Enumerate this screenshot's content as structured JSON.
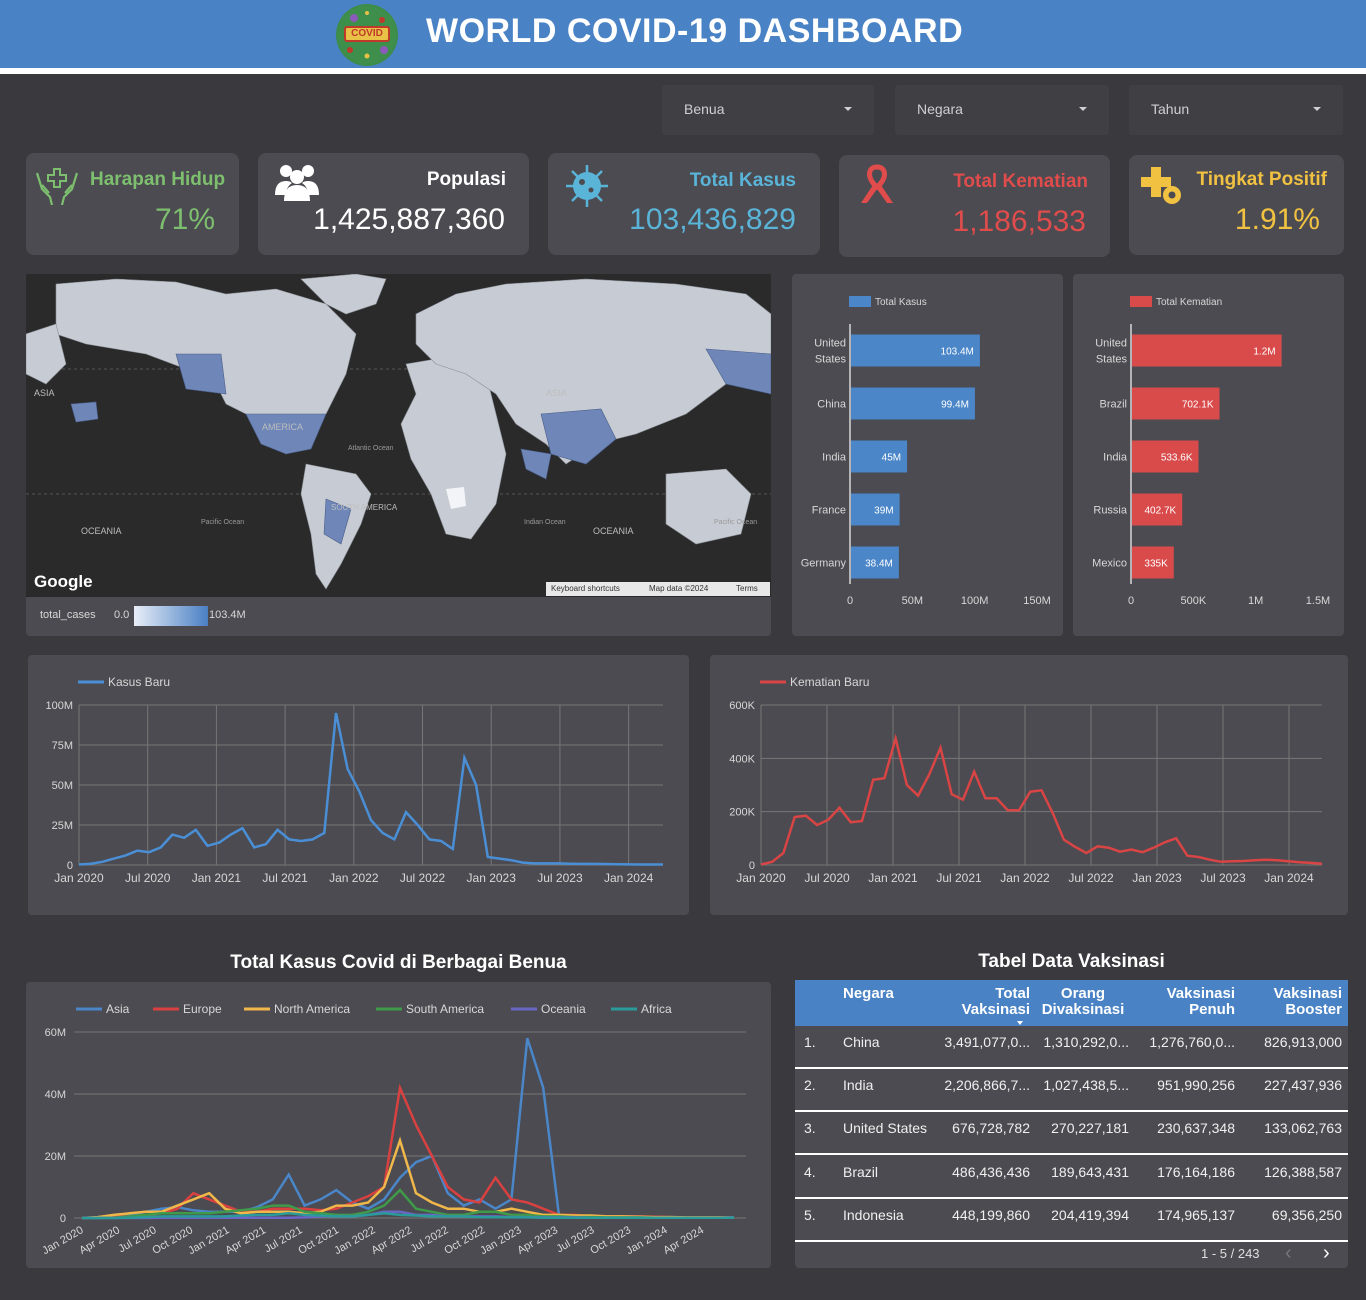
{
  "header": {
    "title": "WORLD COVID-19 DASHBOARD",
    "logo_text": "COVID"
  },
  "filters": [
    {
      "label": "Benua"
    },
    {
      "label": "Negara"
    },
    {
      "label": "Tahun"
    }
  ],
  "kpis": [
    {
      "label": "Harapan Hidup",
      "value": "71%",
      "color": "#7dbf6e",
      "icon": "hands-care-icon"
    },
    {
      "label": "Populasi",
      "value": "1,425,887,360",
      "color": "#ffffff",
      "icon": "people-icon"
    },
    {
      "label": "Total Kasus",
      "value": "103,436,829",
      "color": "#5ab4d8",
      "icon": "virus-icon"
    },
    {
      "label": "Total Kematian",
      "value": "1,186,533",
      "color": "#e04c4c",
      "icon": "ribbon-icon"
    },
    {
      "label": "Tingkat Positif",
      "value": "1.91%",
      "color": "#f1c141",
      "icon": "plus-gear-icon"
    }
  ],
  "map": {
    "google": "Google",
    "attribution": [
      "Keyboard shortcuts",
      "Map data ©2024",
      "Terms"
    ],
    "legend_label": "total_cases",
    "legend_min": "0.0",
    "legend_max": "103.4M",
    "labels": [
      "ASIA",
      "AMERICA",
      "Atlantic Ocean",
      "SOUTH AMERICA",
      "OCEANIA",
      "Pacific Ocean",
      "Indian Ocean",
      "ASIA",
      "OCEANIA",
      "Pacific Ocean"
    ]
  },
  "charts": {
    "cases_bar": {
      "legend": "Total Kasus",
      "color": "#4a86c8",
      "max": 150,
      "ticks": [
        "0",
        "50M",
        "100M",
        "150M"
      ],
      "bars": [
        {
          "label": [
            "United",
            "States"
          ],
          "value": 103.4,
          "text": "103.4M"
        },
        {
          "label": [
            "China"
          ],
          "value": 99.4,
          "text": "99.4M"
        },
        {
          "label": [
            "India"
          ],
          "value": 45,
          "text": "45M"
        },
        {
          "label": [
            "France"
          ],
          "value": 39,
          "text": "39M"
        },
        {
          "label": [
            "Germany"
          ],
          "value": 38.4,
          "text": "38.4M"
        }
      ]
    },
    "deaths_bar": {
      "legend": "Total Kematian",
      "color": "#d94b4b",
      "max": 1.5,
      "ticks": [
        "0",
        "500K",
        "1M",
        "1.5M"
      ],
      "bars": [
        {
          "label": [
            "United",
            "States"
          ],
          "value": 1.2,
          "text": "1.2M"
        },
        {
          "label": [
            "Brazil"
          ],
          "value": 0.7021,
          "text": "702.1K"
        },
        {
          "label": [
            "India"
          ],
          "value": 0.5336,
          "text": "533.6K"
        },
        {
          "label": [
            "Russia"
          ],
          "value": 0.4027,
          "text": "402.7K"
        },
        {
          "label": [
            "Mexico"
          ],
          "value": 0.335,
          "text": "335K"
        }
      ]
    },
    "new_cases": {
      "legend": "Kasus Baru",
      "color": "#4a8fd6",
      "max": 100,
      "yticks": [
        "0",
        "25M",
        "50M",
        "75M",
        "100M"
      ],
      "xticks": [
        "Jan 2020",
        "Jul 2020",
        "Jan 2021",
        "Jul 2021",
        "Jan 2022",
        "Jul 2022",
        "Jan 2023",
        "Jul 2023",
        "Jan 2024"
      ],
      "values": [
        0.3,
        0.8,
        2,
        4,
        6,
        9,
        8,
        11,
        19,
        17,
        22,
        12,
        14,
        19,
        23,
        11,
        13,
        22,
        16,
        15,
        16,
        20,
        95,
        60,
        46,
        28,
        20,
        16,
        33,
        25,
        16,
        15,
        10,
        67,
        50,
        5,
        4,
        3,
        1.5,
        1,
        1,
        1,
        0.8,
        0.7,
        0.7,
        0.6,
        0.5,
        0.4,
        0.3,
        0.3,
        0.3
      ]
    },
    "new_deaths": {
      "legend": "Kematian Baru",
      "color": "#d94444",
      "max": 600,
      "yticks": [
        "0",
        "200K",
        "400K",
        "600K"
      ],
      "xticks": [
        "Jan 2020",
        "Jul 2020",
        "Jan 2021",
        "Jul 2021",
        "Jan 2022",
        "Jul 2022",
        "Jan 2023",
        "Jul 2023",
        "Jan 2024"
      ],
      "values": [
        2,
        12,
        45,
        180,
        185,
        150,
        170,
        215,
        160,
        165,
        320,
        325,
        475,
        300,
        260,
        340,
        440,
        265,
        245,
        350,
        250,
        250,
        205,
        205,
        275,
        280,
        195,
        95,
        68,
        45,
        70,
        65,
        50,
        58,
        48,
        65,
        85,
        100,
        35,
        30,
        20,
        12,
        14,
        15,
        18,
        20,
        18,
        14,
        10,
        8,
        5
      ]
    },
    "continents": {
      "title": "Total Kasus Covid di Berbagai Benua",
      "max": 60,
      "yticks": [
        "0",
        "20M",
        "40M",
        "60M"
      ],
      "xticks": [
        "Jan 2020",
        "Apr 2020",
        "Jul 2020",
        "Oct 2020",
        "Jan 2021",
        "Apr 2021",
        "Jul 2021",
        "Oct 2021",
        "Jan 2022",
        "Apr 2022",
        "Jul 2022",
        "Oct 2022",
        "Jan 2023",
        "Apr 2023",
        "Jul 2023",
        "Oct 2023",
        "Jan 2024",
        "Apr 2024"
      ],
      "series": [
        {
          "name": "Asia",
          "color": "#4a86c8",
          "values": [
            0,
            0.3,
            0.6,
            1,
            2,
            3,
            3.5,
            2.5,
            2,
            2,
            2,
            3.5,
            6,
            14,
            4,
            6,
            9,
            5,
            3,
            6,
            13,
            18,
            20,
            8,
            4,
            6,
            3,
            6,
            58,
            42,
            0.5,
            0.3,
            0.3,
            0.5,
            0.5,
            0.5,
            0.3,
            0.3,
            0.2,
            0.2,
            0.2,
            0.2
          ]
        },
        {
          "name": "Europe",
          "color": "#d94141",
          "values": [
            0,
            0.2,
            0.5,
            0.5,
            0.8,
            1.5,
            3,
            8,
            6,
            4,
            2,
            2,
            3,
            3,
            3,
            2.5,
            3,
            5,
            7,
            10,
            42,
            30,
            20,
            10,
            6,
            5,
            13,
            6,
            5,
            3,
            1,
            1,
            0.5,
            0.5,
            0.5,
            0.5,
            0.4,
            0.3,
            0.2,
            0.2,
            0.2,
            0.1
          ]
        },
        {
          "name": "North America",
          "color": "#f0b74a",
          "values": [
            0,
            0.3,
            1,
            1.5,
            2,
            2,
            4,
            6,
            8,
            3,
            1.5,
            2,
            2,
            2,
            1.5,
            2,
            4,
            4,
            5,
            10,
            25,
            8,
            5,
            3,
            3,
            2,
            2,
            3,
            2,
            1,
            1,
            0.8,
            0.8,
            0.5,
            0.5,
            0.4,
            0.3,
            0.3,
            0.2,
            0.2,
            0.2,
            0.1
          ]
        },
        {
          "name": "South America",
          "color": "#3f9a4a",
          "values": [
            0,
            0,
            0.1,
            0.5,
            1,
            1.5,
            1.5,
            1.5,
            1.5,
            2,
            2.5,
            3,
            4,
            4,
            2,
            1.5,
            1,
            1,
            2,
            4,
            9,
            3,
            2,
            1,
            1,
            2,
            2,
            1,
            1,
            0.5,
            0.5,
            0.3,
            0.3,
            0.2,
            0.2,
            0.2,
            0.1,
            0.1,
            0.1,
            0.1,
            0.1,
            0.1
          ]
        },
        {
          "name": "Oceania",
          "color": "#6a66c4",
          "values": [
            0,
            0,
            0,
            0,
            0,
            0.1,
            0.1,
            0.1,
            0.1,
            0.1,
            0.1,
            0.1,
            0.1,
            0.1,
            0.2,
            0.5,
            0.5,
            0.5,
            1,
            2,
            2,
            1,
            1,
            0.5,
            0.5,
            0.5,
            0.5,
            0.3,
            0.3,
            0.2,
            0.2,
            0.2,
            0.1,
            0.1,
            0.1,
            0.1,
            0.1,
            0.1,
            0.1,
            0.1,
            0.1,
            0.1
          ]
        },
        {
          "name": "Africa",
          "color": "#2a9a9a",
          "values": [
            0,
            0,
            0,
            0.1,
            0.3,
            0.5,
            0.5,
            0.5,
            0.5,
            0.5,
            0.8,
            1,
            1,
            1.5,
            1,
            0.8,
            0.5,
            0.5,
            1,
            1.5,
            1,
            0.8,
            0.5,
            0.5,
            0.5,
            0.3,
            0.3,
            0.2,
            0.2,
            0.1,
            0.1,
            0.1,
            0.1,
            0.1,
            0.1,
            0.1,
            0.1,
            0.1,
            0.1,
            0.1,
            0.1,
            0.1
          ]
        }
      ]
    }
  },
  "table": {
    "title": "Tabel Data Vaksinasi",
    "headers": [
      [
        "Negara"
      ],
      [
        "Total",
        "Vaksinasi"
      ],
      [
        "Orang",
        "Divaksinasi"
      ],
      [
        "Vaksinasi",
        "Penuh"
      ],
      [
        "Vaksinasi",
        "Booster"
      ]
    ],
    "rows": [
      [
        "1.",
        "China",
        "3,491,077,0...",
        "1,310,292,0...",
        "1,276,760,0...",
        "826,913,000"
      ],
      [
        "2.",
        "India",
        "2,206,866,7...",
        "1,027,438,5...",
        "951,990,256",
        "227,437,936"
      ],
      [
        "3.",
        "United States",
        "676,728,782",
        "270,227,181",
        "230,637,348",
        "133,062,763"
      ],
      [
        "4.",
        "Brazil",
        "486,436,436",
        "189,643,431",
        "176,164,186",
        "126,388,587"
      ],
      [
        "5.",
        "Indonesia",
        "448,199,860",
        "204,419,394",
        "174,965,137",
        "69,356,250"
      ]
    ],
    "pagination": "1 - 5 / 243"
  }
}
